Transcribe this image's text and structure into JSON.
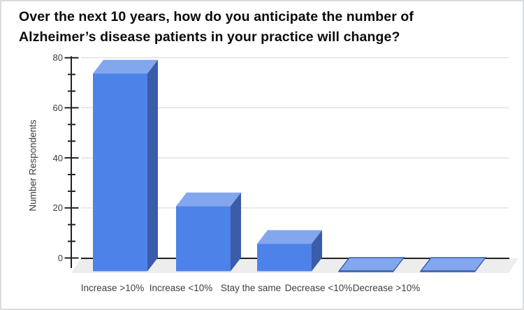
{
  "title": {
    "line1": "Over the next 10 years, how do you anticipate the number of",
    "line2": "Alzheimer’s disease patients in your practice will change?"
  },
  "chart_data": {
    "type": "bar",
    "variant": "3d-column",
    "title": "Over the next 10 years, how do you anticipate the number of Alzheimer’s disease patients in your practice will change?",
    "categories": [
      "Increase >10%",
      "Increase <10%",
      "Stay the same",
      "Decrease <10%",
      "Decrease >10%"
    ],
    "values": [
      79,
      26,
      11,
      0,
      0
    ],
    "xlabel": "",
    "ylabel": "Number Respondents",
    "ylim": [
      0,
      80
    ],
    "y_major_ticks": [
      0,
      20,
      40,
      60,
      80
    ],
    "y_minor_ticks_between_majors": 2,
    "grid": true,
    "legend": "none",
    "colors": {
      "bar_front": "#4d82e8",
      "bar_top": "#82a7ef",
      "bar_side": "#3b5ca9",
      "floor": "#ededed",
      "gridline": "#dadada",
      "baseline": "#212121",
      "axis": "#212121",
      "label_text": "#3c4043",
      "title_text": "#0b0b0b"
    }
  }
}
